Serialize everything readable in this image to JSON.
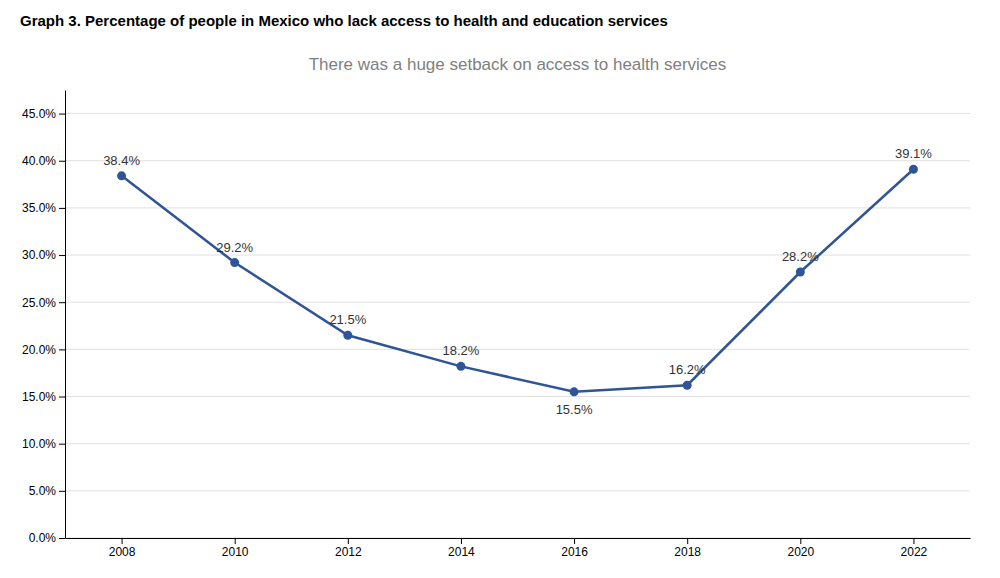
{
  "chart_data": {
    "type": "line",
    "title": "Graph 3. Percentage of people in Mexico who lack access to health and education services",
    "subtitle": "There was a huge setback on access to health services",
    "x": [
      2008,
      2010,
      2012,
      2014,
      2016,
      2018,
      2020,
      2022
    ],
    "values": [
      38.4,
      29.2,
      21.5,
      18.2,
      15.5,
      16.2,
      28.2,
      39.1
    ],
    "value_labels": [
      "38.4%",
      "29.2%",
      "21.5%",
      "18.2%",
      "15.5%",
      "16.2%",
      "28.2%",
      "39.1%"
    ],
    "color": "#2F5597",
    "marker": "circle",
    "line_style": "solid",
    "data_labels": true,
    "grid": true,
    "xlim": [
      2007,
      2023
    ],
    "xticks": [
      2008,
      2010,
      2012,
      2014,
      2016,
      2018,
      2020,
      2022
    ],
    "ylim": [
      0.0,
      47.5
    ],
    "yticks": [
      {
        "value": 0.0,
        "label": "0.0%"
      },
      {
        "value": 5.0,
        "label": "5.0%"
      },
      {
        "value": 10.0,
        "label": "10.0%"
      },
      {
        "value": 15.0,
        "label": "15.0%"
      },
      {
        "value": 20.0,
        "label": "20.0%"
      },
      {
        "value": 25.0,
        "label": "25.0%"
      },
      {
        "value": 30.0,
        "label": "30.0%"
      },
      {
        "value": 35.0,
        "label": "35.0%"
      },
      {
        "value": 40.0,
        "label": "40.0%"
      },
      {
        "value": 45.0,
        "label": "45.0%"
      }
    ]
  }
}
